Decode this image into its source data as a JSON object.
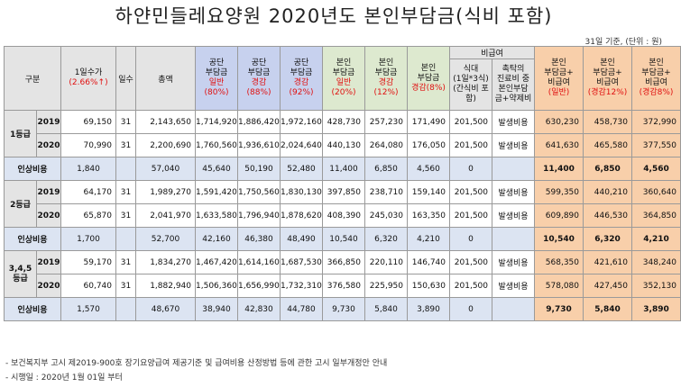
{
  "title": "하얀민들레요양원 2020년도 본인부담금(식비 포함)",
  "unit_note": "31일 기준, (단위 : 원)",
  "header": {
    "category": "구분",
    "daily_rate": "1일수가",
    "daily_rate_pct": "(2.66%↑)",
    "days": "일수",
    "total": "총액",
    "public_general_1": "공단",
    "public_general_2": "부담금",
    "public_general_3": "일반",
    "public_general_4": "(80%)",
    "public_reduce12_1": "공단",
    "public_reduce12_2": "부담금",
    "public_reduce12_3": "경감",
    "public_reduce12_4": "(88%)",
    "public_reduce8_1": "공단",
    "public_reduce8_2": "부담금",
    "public_reduce8_3": "경감",
    "public_reduce8_4": "(92%)",
    "self_general_1": "본인",
    "self_general_2": "부담금",
    "self_general_3": "일반",
    "self_general_4": "(20%)",
    "self_reduce12_1": "본인",
    "self_reduce12_2": "부담금",
    "self_reduce12_3": "(12%)",
    "self_reduce12_label": "경감",
    "self_reduce8_1": "본인",
    "self_reduce8_2": "부담금",
    "self_reduce8_3": "경감(8%)",
    "noncovered": "비급여",
    "meal_1": "식대",
    "meal_2": "(1일*3식)",
    "meal_3": "(간식비 포",
    "meal_4": "함)",
    "special_1": "촉탁의",
    "special_2": "진료비 중",
    "special_3": "본인부담",
    "special_4": "금+약제비",
    "tot_general_1": "본인",
    "tot_general_2": "부담금+",
    "tot_general_3": "비급여",
    "tot_general_4": "(일반)",
    "tot_r12_1": "본인",
    "tot_r12_2": "부담금+",
    "tot_r12_3": "비급여",
    "tot_r12_4": "(경감12%)",
    "tot_r8_1": "본인",
    "tot_r8_2": "부담금+",
    "tot_r8_3": "비급여",
    "tot_r8_4": "(경감8%)"
  },
  "grade1": {
    "label": "1등급",
    "row2019": {
      "year": "2019",
      "daily": "69,150",
      "days": "31",
      "total": "2,143,650",
      "pg": "1,714,920",
      "p12": "1,886,420",
      "p8": "1,972,160",
      "sg": "428,730",
      "s12": "257,230",
      "s8": "171,490",
      "meal": "201,500",
      "special": "발생비용",
      "tg": "630,230",
      "t12": "458,730",
      "t8": "372,990"
    },
    "row2020": {
      "year": "2020",
      "daily": "70,990",
      "days": "31",
      "total": "2,200,690",
      "pg": "1,760,560",
      "p12": "1,936,610",
      "p8": "2,024,640",
      "sg": "440,130",
      "s12": "264,080",
      "s8": "176,050",
      "meal": "201,500",
      "special": "발생비용",
      "tg": "641,630",
      "t12": "465,580",
      "t8": "377,550"
    },
    "inc": {
      "label": "인상비용",
      "daily": "1,840",
      "total": "57,040",
      "pg": "45,640",
      "p12": "50,190",
      "p8": "52,480",
      "sg": "11,400",
      "s12": "6,850",
      "s8": "4,560",
      "meal": "0",
      "tg": "11,400",
      "t12": "6,850",
      "t8": "4,560"
    }
  },
  "grade2": {
    "label": "2등급",
    "row2019": {
      "year": "2019",
      "daily": "64,170",
      "days": "31",
      "total": "1,989,270",
      "pg": "1,591,420",
      "p12": "1,750,560",
      "p8": "1,830,130",
      "sg": "397,850",
      "s12": "238,710",
      "s8": "159,140",
      "meal": "201,500",
      "special": "발생비용",
      "tg": "599,350",
      "t12": "440,210",
      "t8": "360,640"
    },
    "row2020": {
      "year": "2020",
      "daily": "65,870",
      "days": "31",
      "total": "2,041,970",
      "pg": "1,633,580",
      "p12": "1,796,940",
      "p8": "1,878,620",
      "sg": "408,390",
      "s12": "245,030",
      "s8": "163,350",
      "meal": "201,500",
      "special": "발생비용",
      "tg": "609,890",
      "t12": "446,530",
      "t8": "364,850"
    },
    "inc": {
      "label": "인상비용",
      "daily": "1,700",
      "total": "52,700",
      "pg": "42,160",
      "p12": "46,380",
      "p8": "48,490",
      "sg": "10,540",
      "s12": "6,320",
      "s8": "4,210",
      "meal": "0",
      "tg": "10,540",
      "t12": "6,320",
      "t8": "4,210"
    }
  },
  "grade3": {
    "label": "3,4,5등급",
    "label_a": "3,4,5",
    "label_b": "등급",
    "row2019": {
      "year": "2019",
      "daily": "59,170",
      "days": "31",
      "total": "1,834,270",
      "pg": "1,467,420",
      "p12": "1,614,160",
      "p8": "1,687,530",
      "sg": "366,850",
      "s12": "220,110",
      "s8": "146,740",
      "meal": "201,500",
      "special": "발생비용",
      "tg": "568,350",
      "t12": "421,610",
      "t8": "348,240"
    },
    "row2020": {
      "year": "2020",
      "daily": "60,740",
      "days": "31",
      "total": "1,882,940",
      "pg": "1,506,360",
      "p12": "1,656,990",
      "p8": "1,732,310",
      "sg": "376,580",
      "s12": "225,950",
      "s8": "150,630",
      "meal": "201,500",
      "special": "발생비용",
      "tg": "578,080",
      "t12": "427,450",
      "t8": "352,130"
    },
    "inc": {
      "label": "인상비용",
      "daily": "1,570",
      "total": "48,670",
      "pg": "38,940",
      "p12": "42,830",
      "p8": "44,780",
      "sg": "9,730",
      "s12": "5,840",
      "s8": "3,890",
      "meal": "0",
      "tg": "9,730",
      "t12": "5,840",
      "t8": "3,890"
    }
  },
  "notes": {
    "line1": "- 보건복지부 고시 제2019-900호 장기요양급여 제공기준 및 급여비용 산정방법 등에 관한 고시 일부개정안 안내",
    "line2": "- 시행일 : 2020년 1월 01일 부터"
  },
  "colors": {
    "public": "#c7d1ee",
    "self": "#dde9cf",
    "total": "#f8cfaa",
    "header": "#e4e4e4",
    "increase": "#dce4f2",
    "accent_red": "#e01010"
  }
}
